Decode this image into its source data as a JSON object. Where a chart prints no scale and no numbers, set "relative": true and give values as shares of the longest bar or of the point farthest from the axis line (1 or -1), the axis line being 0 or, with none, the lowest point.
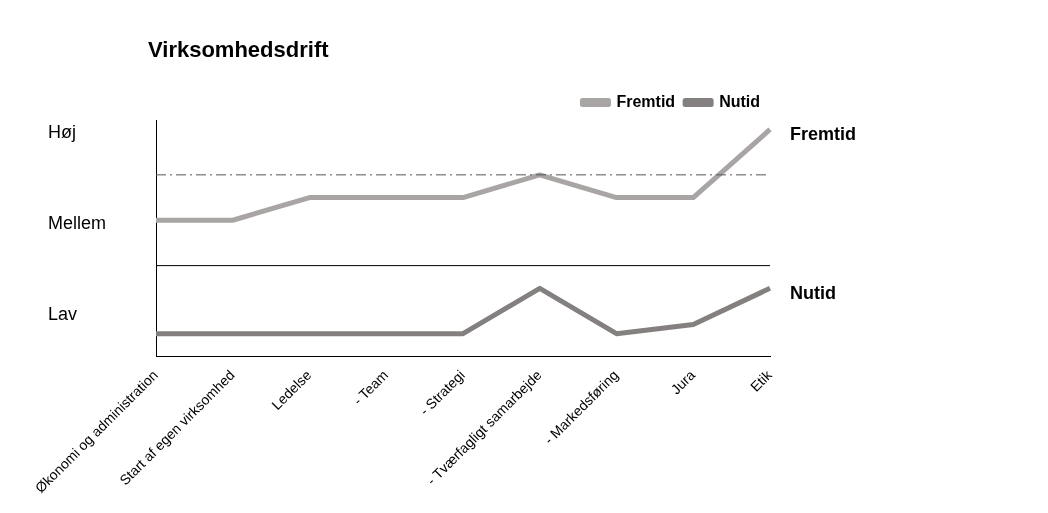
{
  "chart_data": {
    "type": "line",
    "title": "Virksomhedsdrift",
    "relative": true,
    "categories": [
      "Økonomi og administration",
      "Start af egen virksomhed",
      "Ledelse",
      "- Team",
      "- Strategi",
      "- Tværfagligt samarbejde",
      "- Markedsføring",
      "Jura",
      "Etik"
    ],
    "series": [
      {
        "name": "Fremtid",
        "color": "#aaa5a5",
        "values": [
          0.6,
          0.6,
          0.7,
          0.7,
          0.7,
          0.8,
          0.7,
          0.7,
          1
        ]
      },
      {
        "name": "Nutid",
        "color": "#858080",
        "values": [
          0.1,
          0.1,
          0.1,
          0.1,
          0.1,
          0.3,
          0.1,
          0.14,
          0.3
        ]
      }
    ],
    "annotations": [
      "Høj",
      "Mellem",
      "Lav"
    ],
    "ref_lines": [
      {
        "axis": "y",
        "value": 0.4,
        "color": "#000000",
        "line_style": "solid"
      },
      {
        "axis": "y",
        "value": 0.8,
        "color": "#555555",
        "line_style": "dashed"
      }
    ],
    "grid": false,
    "legend": "top right",
    "marker": "none",
    "line_style": "solid"
  }
}
